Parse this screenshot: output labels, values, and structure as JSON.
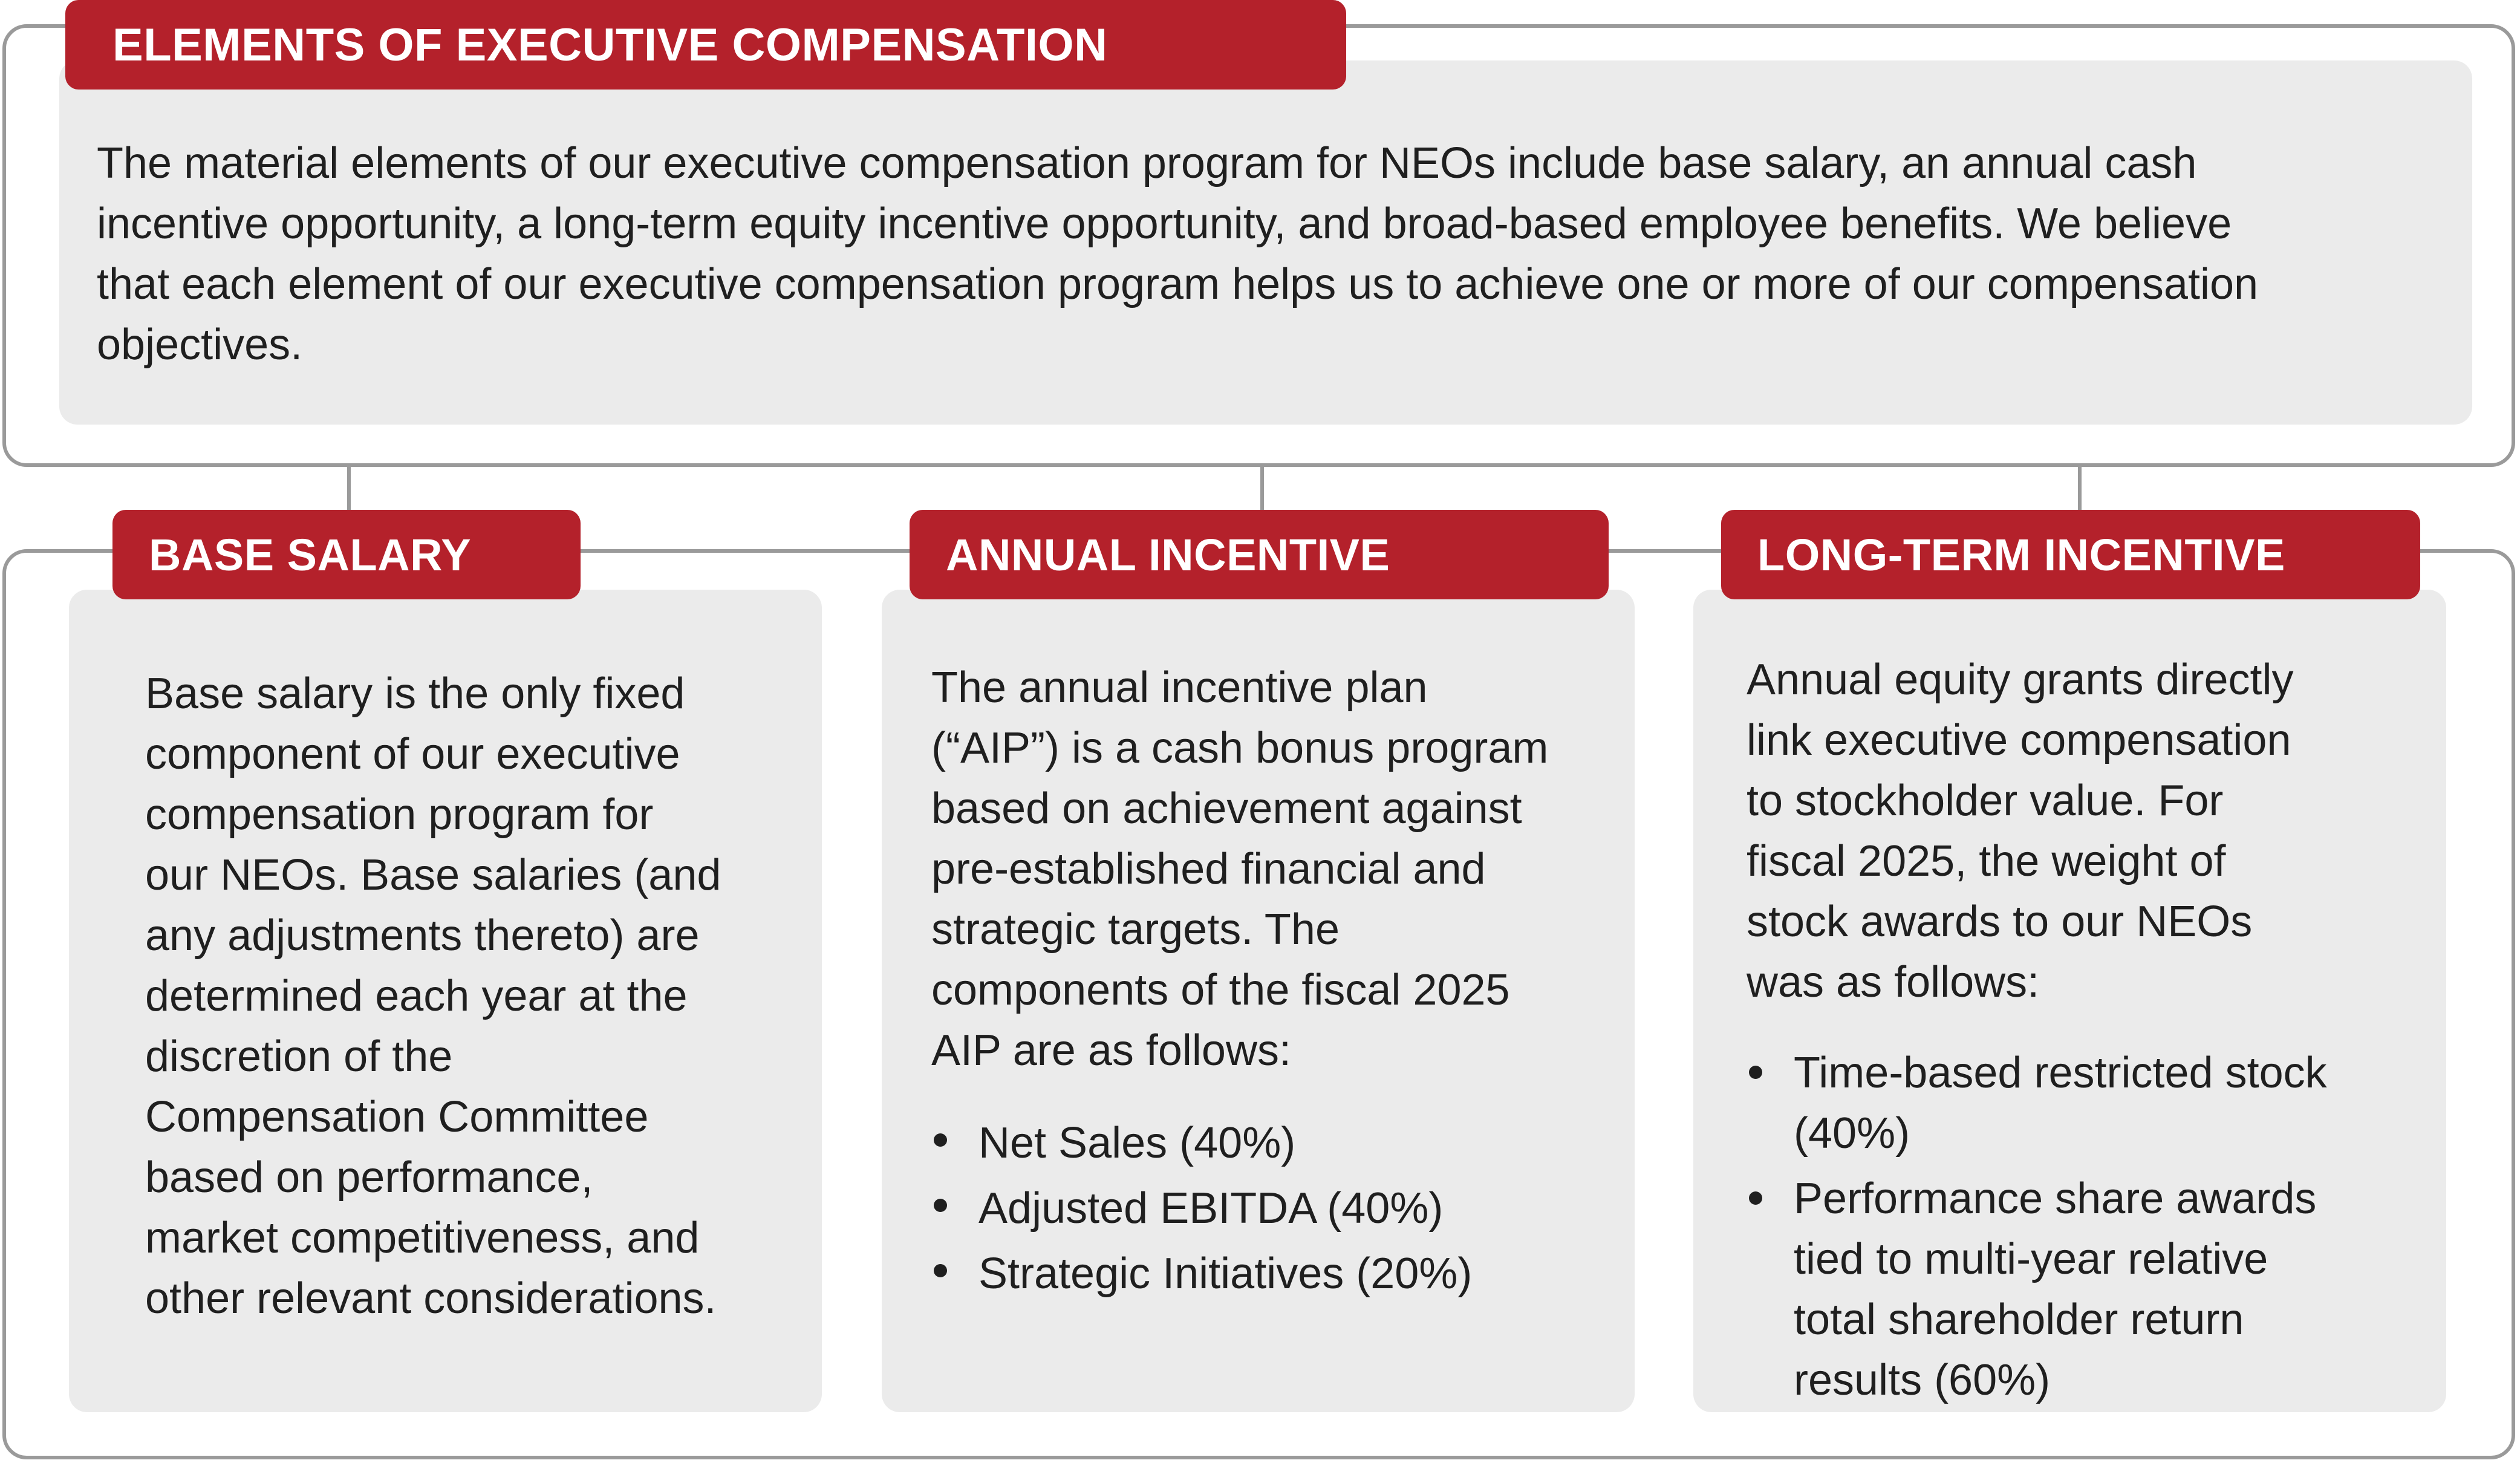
{
  "header": {
    "title": "ELEMENTS OF EXECUTIVE COMPENSATION",
    "intro_lines": [
      "The material elements of our executive compensation program for NEOs include base salary, an annual cash",
      "incentive opportunity, a long-term equity incentive opportunity, and broad-based employee benefits. We believe",
      "that each element of our executive compensation program helps us to achieve one or more of our compensation",
      "objectives."
    ]
  },
  "columns": [
    {
      "title": "BASE SALARY",
      "lines": [
        "Base salary is the only fixed",
        "component of our executive",
        "compensation program for",
        "our NEOs. Base salaries (and",
        "any adjustments thereto) are",
        "determined each year at the",
        "discretion of the",
        "Compensation Committee",
        "based on performance,",
        "market competitiveness, and",
        "other relevant considerations."
      ]
    },
    {
      "title": "ANNUAL INCENTIVE",
      "lines": [
        "The annual incentive plan",
        "(“AIP”) is a cash bonus program",
        "based on achievement against",
        "pre-established financial and",
        "strategic targets. The",
        "components of the fiscal 2025",
        "AIP are as follows:"
      ],
      "bullets": [
        "Net Sales (40%)",
        "Adjusted EBITDA (40%)",
        "Strategic Initiatives (20%)"
      ]
    },
    {
      "title": "LONG-TERM INCENTIVE",
      "lines": [
        "Annual equity grants directly",
        "link executive compensation",
        "to stockholder value. For",
        "fiscal 2025, the weight of",
        "stock awards to our NEOs",
        "was as follows:"
      ],
      "bullets": [
        [
          "Time-based restricted stock",
          "(40%)"
        ],
        [
          "Performance share awards",
          "tied to multi-year relative",
          "total shareholder return",
          "results (60%)"
        ]
      ]
    }
  ],
  "colors": {
    "accent_red": "#b4212b",
    "panel_gray": "#ebebeb",
    "frame_gray": "#9a9a9a"
  }
}
